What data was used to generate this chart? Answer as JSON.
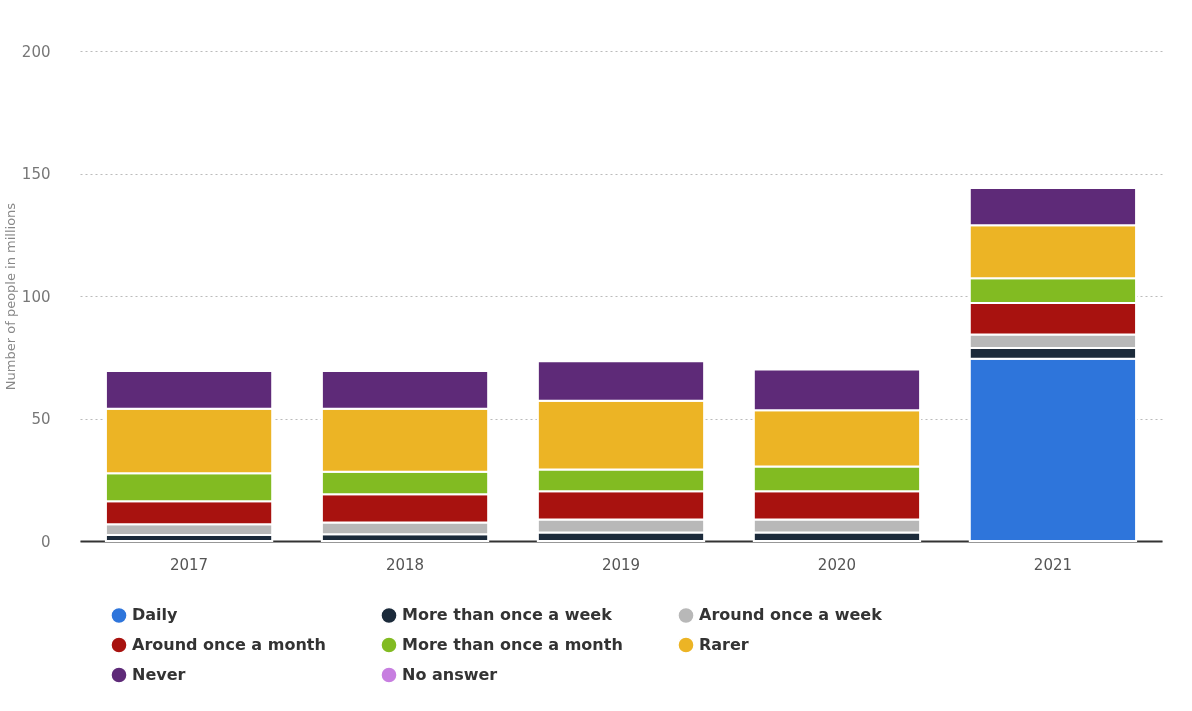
{
  "chart_data": {
    "type": "bar",
    "stacked": true,
    "ylabel": "Number of people in millions",
    "categories": [
      "2017",
      "2018",
      "2019",
      "2020",
      "2021"
    ],
    "series": [
      {
        "name": "Daily",
        "color": "#2e75db",
        "values": [
          null,
          null,
          null,
          null,
          74.4
        ]
      },
      {
        "name": "More than once a week",
        "color": "#1b2a3a",
        "values": [
          2.5,
          2.8,
          3.5,
          3.5,
          4.4
        ]
      },
      {
        "name": "Around once a week",
        "color": "#b8b8b8",
        "values": [
          4.3,
          4.8,
          5.3,
          5.3,
          5.5
        ]
      },
      {
        "name": "Around once a month",
        "color": "#a8120f",
        "values": [
          9.4,
          11.5,
          11.5,
          11.5,
          12.8
        ]
      },
      {
        "name": "More than once a month",
        "color": "#82bb22",
        "values": [
          11.5,
          9.2,
          8.9,
          10.1,
          10.1
        ]
      },
      {
        "name": "Rarer",
        "color": "#ecb425",
        "values": [
          26.3,
          25.7,
          28.0,
          23.0,
          21.7
        ]
      },
      {
        "name": "Never",
        "color": "#5e2a78",
        "values": [
          15.4,
          15.4,
          16.2,
          16.6,
          15.2
        ]
      },
      {
        "name": "No answer",
        "color": "#c77ee0",
        "values": [
          null,
          null,
          null,
          null,
          null
        ]
      }
    ],
    "ylim": [
      0,
      200
    ],
    "yticks": [
      0,
      50,
      100,
      150,
      200
    ],
    "grid": "y",
    "legend": "bottom"
  }
}
